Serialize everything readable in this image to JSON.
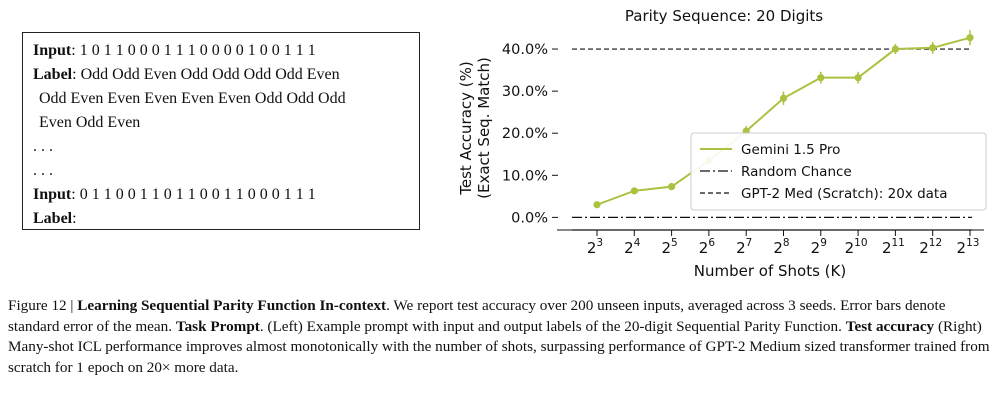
{
  "prompt": {
    "input_label": "Input",
    "input1": "1 0 1 1 0 0 0 1 1 1 0 0 0 0 1 0 0 1 1 1",
    "label_label": "Label",
    "label1_line1": "Odd Odd Even Odd Odd Odd Odd Even",
    "label1_line2": "Odd Even Even Even Even Even Odd Odd Odd",
    "label1_line3": "Even Odd Even",
    "ellipsis": ". . .",
    "input2": "0 1 1 0 0 1 1 0 1 1 0 0 1 1 0 0 0 1 1 1",
    "label2": ""
  },
  "chart_data": {
    "type": "line",
    "title": "Parity Sequence: 20 Digits",
    "xlabel": "Number of Shots (K)",
    "ylabel_line1": "Test Accuracy (%)",
    "ylabel_line2": "(Exact Seq. Match)",
    "x_tick_base": "2",
    "x_exponents": [
      "3",
      "4",
      "5",
      "6",
      "7",
      "8",
      "9",
      "10",
      "11",
      "12",
      "13"
    ],
    "y_ticks": [
      "0.0%",
      "10.0%",
      "20.0%",
      "30.0%",
      "40.0%"
    ],
    "ylim": [
      -3,
      45
    ],
    "series": [
      {
        "name": "Gemini 1.5 Pro",
        "color": "#a9c23f",
        "values": [
          3.0,
          6.3,
          7.3,
          13.5,
          20.5,
          28.3,
          33.2,
          33.2,
          40.0,
          40.3,
          42.7
        ],
        "errors": [
          0.6,
          0.6,
          0.6,
          1.0,
          1.2,
          1.6,
          1.4,
          1.4,
          1.2,
          1.4,
          1.8
        ]
      }
    ],
    "reference_lines": [
      {
        "name": "Random Chance",
        "value": 0.0,
        "style": "dashdot",
        "color": "#111111"
      },
      {
        "name": "GPT-2 Med (Scratch): 20x data",
        "value": 40.0,
        "style": "dashed",
        "color": "#111111"
      }
    ],
    "legend_position": "lower-right",
    "grid": false
  },
  "caption": {
    "figure_label": "Figure 12 | ",
    "title_bold": "Learning Sequential Parity Function In-context",
    "text1": ". We report test accuracy over 200 unseen inputs, averaged across 3 seeds. Error bars denote standard error of the mean. ",
    "task_prompt_bold": "Task Prompt",
    "text2": ". (Left) Example prompt with input and output labels of the 20-digit Sequential Parity Function. ",
    "test_accuracy_bold": "Test accuracy",
    "text3": " (Right) Many-shot ICL performance improves almost monotonically with the number of shots, surpassing performance of GPT-2 Medium sized transformer trained from scratch for 1 epoch on 20× more data."
  }
}
